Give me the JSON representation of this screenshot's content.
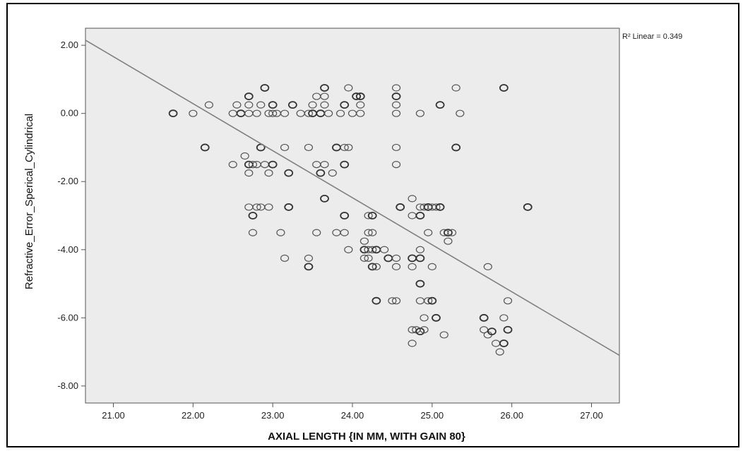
{
  "chart_data": {
    "type": "scatter",
    "xlabel": "AXIAL LENGTH {IN MM, WITH GAIN 80}",
    "ylabel": "Refractive_Error_Sperical_Cylindrical",
    "xlim": [
      20.65,
      27.35
    ],
    "ylim": [
      -8.5,
      2.5
    ],
    "xticks": [
      "21.00",
      "22.00",
      "23.00",
      "24.00",
      "25.00",
      "26.00",
      "27.00"
    ],
    "yticks": [
      "2.00",
      "0.00",
      "-2.00",
      "-4.00",
      "-6.00",
      "-8.00"
    ],
    "grid": false,
    "plot_background": "#ececec",
    "marker": "open-circle",
    "fit_line": {
      "label": "R² Linear = 0.349",
      "x": [
        20.65,
        27.35
      ],
      "y": [
        2.15,
        -7.1
      ],
      "color": "#808080"
    },
    "points": [
      [
        21.75,
        0.0
      ],
      [
        22.0,
        0.0
      ],
      [
        22.2,
        0.25
      ],
      [
        22.15,
        -1.0
      ],
      [
        22.5,
        0.0
      ],
      [
        22.55,
        0.25
      ],
      [
        22.6,
        0.0
      ],
      [
        22.7,
        0.0
      ],
      [
        22.7,
        0.25
      ],
      [
        22.7,
        0.5
      ],
      [
        22.8,
        0.0
      ],
      [
        22.85,
        0.25
      ],
      [
        22.9,
        0.75
      ],
      [
        22.95,
        0.0
      ],
      [
        23.0,
        0.0
      ],
      [
        23.0,
        0.25
      ],
      [
        23.05,
        0.0
      ],
      [
        23.15,
        0.0
      ],
      [
        23.25,
        0.25
      ],
      [
        23.35,
        0.0
      ],
      [
        23.45,
        0.0
      ],
      [
        23.5,
        0.0
      ],
      [
        23.5,
        0.25
      ],
      [
        23.55,
        0.5
      ],
      [
        23.6,
        0.0
      ],
      [
        23.65,
        0.25
      ],
      [
        23.65,
        0.5
      ],
      [
        23.65,
        0.75
      ],
      [
        23.7,
        0.0
      ],
      [
        23.85,
        0.0
      ],
      [
        23.9,
        0.25
      ],
      [
        23.95,
        0.75
      ],
      [
        24.0,
        0.0
      ],
      [
        24.05,
        0.5
      ],
      [
        24.1,
        0.0
      ],
      [
        24.1,
        0.25
      ],
      [
        24.1,
        0.5
      ],
      [
        24.55,
        0.0
      ],
      [
        24.55,
        0.25
      ],
      [
        24.55,
        0.5
      ],
      [
        24.55,
        0.75
      ],
      [
        24.85,
        0.0
      ],
      [
        25.1,
        0.25
      ],
      [
        25.3,
        0.75
      ],
      [
        25.35,
        0.0
      ],
      [
        25.9,
        0.75
      ],
      [
        22.5,
        -1.5
      ],
      [
        22.65,
        -1.25
      ],
      [
        22.7,
        -1.5
      ],
      [
        22.75,
        -1.5
      ],
      [
        22.8,
        -1.5
      ],
      [
        22.85,
        -1.0
      ],
      [
        22.9,
        -1.5
      ],
      [
        22.95,
        -1.75
      ],
      [
        23.0,
        -1.5
      ],
      [
        22.7,
        -1.75
      ],
      [
        23.15,
        -1.0
      ],
      [
        23.2,
        -1.75
      ],
      [
        23.45,
        -1.0
      ],
      [
        23.55,
        -1.5
      ],
      [
        23.6,
        -1.75
      ],
      [
        23.65,
        -1.5
      ],
      [
        23.75,
        -1.75
      ],
      [
        23.8,
        -1.0
      ],
      [
        23.9,
        -1.0
      ],
      [
        23.95,
        -1.0
      ],
      [
        23.9,
        -1.5
      ],
      [
        24.55,
        -1.0
      ],
      [
        24.55,
        -1.5
      ],
      [
        25.3,
        -1.0
      ],
      [
        22.7,
        -2.75
      ],
      [
        22.8,
        -2.75
      ],
      [
        22.75,
        -3.0
      ],
      [
        22.85,
        -2.75
      ],
      [
        22.95,
        -2.75
      ],
      [
        23.2,
        -2.75
      ],
      [
        22.75,
        -3.5
      ],
      [
        23.1,
        -3.5
      ],
      [
        23.65,
        -2.5
      ],
      [
        23.55,
        -3.5
      ],
      [
        23.8,
        -3.5
      ],
      [
        23.9,
        -3.0
      ],
      [
        23.9,
        -3.5
      ],
      [
        24.2,
        -3.0
      ],
      [
        24.25,
        -3.0
      ],
      [
        24.2,
        -3.5
      ],
      [
        24.25,
        -3.5
      ],
      [
        24.6,
        -2.75
      ],
      [
        24.75,
        -2.5
      ],
      [
        24.75,
        -3.0
      ],
      [
        24.85,
        -3.0
      ],
      [
        24.85,
        -2.75
      ],
      [
        24.9,
        -2.75
      ],
      [
        24.95,
        -2.75
      ],
      [
        25.0,
        -2.75
      ],
      [
        25.05,
        -2.75
      ],
      [
        25.1,
        -2.75
      ],
      [
        24.95,
        -3.5
      ],
      [
        25.15,
        -3.5
      ],
      [
        25.2,
        -3.5
      ],
      [
        25.25,
        -3.5
      ],
      [
        25.2,
        -3.75
      ],
      [
        26.2,
        -2.75
      ],
      [
        23.15,
        -4.25
      ],
      [
        23.45,
        -4.25
      ],
      [
        23.45,
        -4.5
      ],
      [
        23.95,
        -4.0
      ],
      [
        24.15,
        -3.75
      ],
      [
        24.15,
        -4.0
      ],
      [
        24.2,
        -4.0
      ],
      [
        24.25,
        -4.0
      ],
      [
        24.3,
        -4.0
      ],
      [
        24.2,
        -4.25
      ],
      [
        24.15,
        -4.25
      ],
      [
        24.25,
        -4.5
      ],
      [
        24.3,
        -4.5
      ],
      [
        24.4,
        -4.0
      ],
      [
        24.45,
        -4.25
      ],
      [
        24.55,
        -4.25
      ],
      [
        24.55,
        -4.5
      ],
      [
        24.75,
        -4.25
      ],
      [
        24.75,
        -4.5
      ],
      [
        24.85,
        -4.0
      ],
      [
        24.85,
        -4.25
      ],
      [
        25.0,
        -4.5
      ],
      [
        25.7,
        -4.5
      ],
      [
        24.3,
        -5.5
      ],
      [
        24.5,
        -5.5
      ],
      [
        24.55,
        -5.5
      ],
      [
        24.85,
        -5.0
      ],
      [
        24.85,
        -5.5
      ],
      [
        24.95,
        -5.5
      ],
      [
        25.0,
        -5.5
      ],
      [
        24.75,
        -6.35
      ],
      [
        24.8,
        -6.35
      ],
      [
        24.85,
        -6.4
      ],
      [
        24.9,
        -6.35
      ],
      [
        24.9,
        -6.0
      ],
      [
        25.05,
        -6.0
      ],
      [
        25.15,
        -6.5
      ],
      [
        24.75,
        -6.75
      ],
      [
        25.65,
        -6.0
      ],
      [
        25.65,
        -6.35
      ],
      [
        25.7,
        -6.5
      ],
      [
        25.75,
        -6.4
      ],
      [
        25.8,
        -6.75
      ],
      [
        25.85,
        -7.0
      ],
      [
        25.9,
        -6.75
      ],
      [
        25.9,
        -6.0
      ],
      [
        25.95,
        -5.5
      ],
      [
        25.95,
        -6.35
      ]
    ]
  }
}
